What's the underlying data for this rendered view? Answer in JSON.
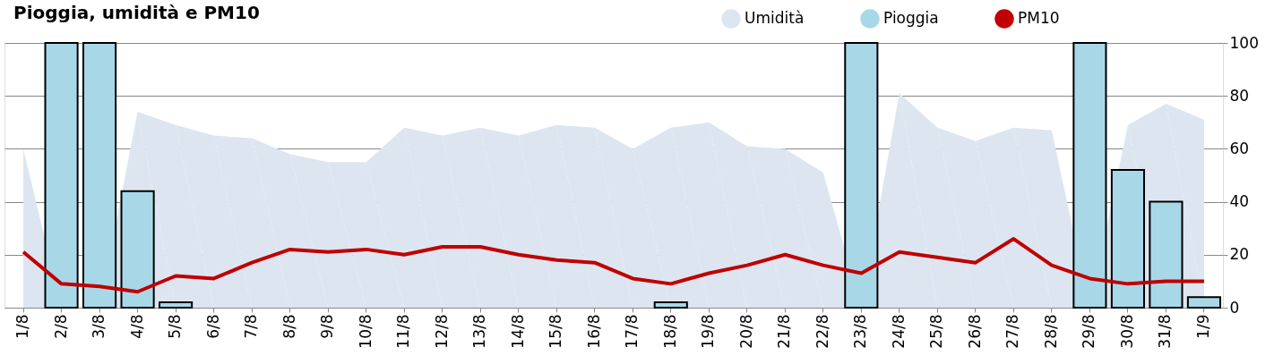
{
  "chart_data": {
    "type": "bar",
    "title": "Pioggia, umidità e PM10",
    "categories": [
      "1/8",
      "2/8",
      "3/8",
      "4/8",
      "5/8",
      "6/8",
      "7/8",
      "8/8",
      "9/8",
      "10/8",
      "11/8",
      "12/8",
      "13/8",
      "14/8",
      "15/8",
      "16/8",
      "17/8",
      "18/8",
      "19/8",
      "20/8",
      "21/8",
      "22/8",
      "23/8",
      "24/8",
      "25/8",
      "26/8",
      "27/8",
      "28/8",
      "29/8",
      "30/8",
      "31/8",
      "1/9"
    ],
    "series": [
      {
        "name": "Umidità",
        "type": "area",
        "color": "#dde6f0",
        "values": [
          60,
          null,
          null,
          74,
          69,
          65,
          64,
          58,
          55,
          55,
          68,
          65,
          68,
          65,
          69,
          68,
          60,
          68,
          70,
          61,
          60,
          51,
          null,
          81,
          68,
          63,
          68,
          67,
          null,
          69,
          77,
          71
        ]
      },
      {
        "name": "Pioggia",
        "color": "#a8d8e8",
        "values": [
          null,
          100,
          100,
          44,
          2,
          null,
          null,
          null,
          null,
          null,
          null,
          null,
          null,
          null,
          null,
          null,
          null,
          2,
          null,
          null,
          null,
          null,
          100,
          null,
          null,
          null,
          null,
          null,
          100,
          52,
          40,
          4
        ]
      },
      {
        "name": "PM10",
        "type": "line",
        "color": "#c00000",
        "values": [
          21,
          9,
          8,
          6,
          12,
          11,
          17,
          22,
          21,
          22,
          20,
          23,
          23,
          20,
          18,
          17,
          11,
          9,
          13,
          16,
          20,
          16,
          13,
          21,
          19,
          17,
          26,
          16,
          11,
          9,
          10,
          10
        ]
      }
    ],
    "ylim": [
      0,
      100
    ],
    "yticks": [
      0,
      20,
      40,
      60,
      80,
      100
    ],
    "grid": "y",
    "legend": "top right"
  }
}
